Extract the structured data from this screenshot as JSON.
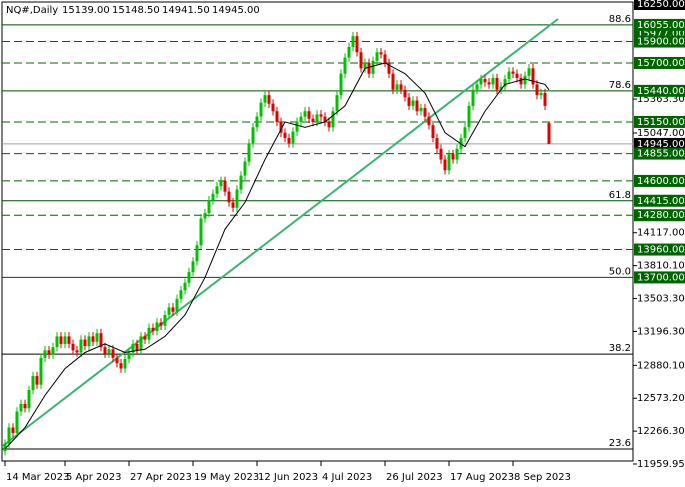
{
  "chart_data": {
    "type": "candlestick",
    "symbol": "NQ#,Daily",
    "header_values": [
      {
        "value": 15139,
        "label": "15139.00"
      },
      {
        "value": 15148.5,
        "label": "15148.50"
      },
      {
        "value": 14941.5,
        "label": "14941.50"
      },
      {
        "value": 14945,
        "label": "14945.00"
      }
    ],
    "up_color": "#00c000",
    "down_color": "#e00000",
    "ylim": [
      11959.95,
      16250
    ],
    "xlim": [
      -0.75,
      157
    ],
    "yticks": [
      {
        "value": 15363.3,
        "label": "15363.30"
      },
      {
        "value": 15047,
        "label": "15047.00"
      },
      {
        "value": 14117,
        "label": "14117.00"
      },
      {
        "value": 13810.1,
        "label": "13810.10"
      },
      {
        "value": 13503.3,
        "label": "13503.30"
      },
      {
        "value": 13196.3,
        "label": "13196.30"
      },
      {
        "value": 12880.1,
        "label": "12880.10"
      },
      {
        "value": 12573.2,
        "label": "12573.20"
      },
      {
        "value": 12266.3,
        "label": "12266.30"
      },
      11959.95
    ],
    "xticks": [
      {
        "value": 0,
        "label": "14 Mar 2023"
      },
      {
        "value": 15,
        "label": "5 Apr 2023"
      },
      {
        "value": 31,
        "label": "27 Apr 2023"
      },
      {
        "value": 47,
        "label": "19 May 2023"
      },
      {
        "value": 63,
        "label": "12 Jun 2023"
      },
      {
        "value": 79,
        "label": "4 Jul 2023"
      },
      {
        "value": 95,
        "label": "26 Jul 2023"
      },
      {
        "value": 111,
        "label": "17 Aug 2023"
      },
      {
        "value": 127,
        "label": "8 Sep 2023"
      }
    ],
    "levels": [
      {
        "value": 16250,
        "label": "16250.00",
        "style": "top"
      },
      {
        "value": 15977,
        "label": "15977.00",
        "style": "none"
      },
      {
        "value": 16055,
        "label": "16055.00",
        "ratio": "88.6",
        "style": "solid"
      },
      {
        "value": 15900,
        "label": "15900.00",
        "style": "dashed"
      },
      {
        "value": 15700,
        "label": "15700.00",
        "style": "dashed"
      },
      {
        "value": 15440,
        "label": "15440.00",
        "ratio": "78.6",
        "style": "solid"
      },
      {
        "value": 15150,
        "label": "15150.00",
        "style": "dashed"
      },
      {
        "value": 14945,
        "label": "14945.00",
        "style": "price"
      },
      {
        "value": 14855,
        "label": "14855.00",
        "style": "dashed"
      },
      {
        "value": 14600,
        "label": "14600.00",
        "style": "dashed"
      },
      {
        "value": 14415,
        "label": "14415.00",
        "ratio": "61.8",
        "style": "solid"
      },
      {
        "value": 14280,
        "label": "14280.00",
        "style": "dashed"
      },
      {
        "value": 13960,
        "label": "13960.00",
        "style": "dashed"
      },
      {
        "value": 13700,
        "label": "13700.00",
        "ratio": "50.0",
        "style": "solid"
      },
      {
        "value": 12985,
        "ratio": "38.2",
        "style": "black"
      },
      {
        "value": 12100,
        "ratio": "23.6",
        "style": "black"
      }
    ],
    "trendline": {
      "color": "#3cb371",
      "x": [
        -0.5,
        138.25
      ],
      "values": [
        12130,
        16110
      ]
    },
    "ma": {
      "color": "#000000",
      "x": [
        0,
        5,
        10,
        15,
        20,
        25,
        30,
        35,
        40,
        45,
        50,
        55,
        60,
        65,
        70,
        75,
        80,
        85,
        90,
        95,
        100,
        105,
        110,
        115,
        120,
        125,
        130,
        135,
        136
      ],
      "values": [
        12100,
        12300,
        12600,
        12850,
        13000,
        13080,
        13000,
        13030,
        13150,
        13350,
        13700,
        14150,
        14400,
        14800,
        15150,
        15100,
        15150,
        15300,
        15650,
        15700,
        15600,
        15420,
        15050,
        14920,
        15250,
        15500,
        15550,
        15500,
        15450
      ]
    },
    "open": [
      12080,
      12150,
      12300,
      12250,
      12450,
      12520,
      12480,
      12650,
      12780,
      12700,
      12950,
      13020,
      12980,
      13050,
      13150,
      13080,
      13150,
      13080,
      13020,
      13000,
      13120,
      13060,
      13150,
      13100,
      13180,
      13050,
      12990,
      13030,
      12950,
      12900,
      12850,
      12940,
      13000,
      13080,
      13020,
      13150,
      13120,
      13230,
      13200,
      13280,
      13250,
      13350,
      13420,
      13380,
      13500,
      13580,
      13650,
      13750,
      13850,
      14000,
      14250,
      14300,
      14420,
      14480,
      14550,
      14600,
      14500,
      14400,
      14350,
      14520,
      14650,
      14780,
      14950,
      15100,
      15200,
      15330,
      15400,
      15320,
      15250,
      15150,
      15050,
      15000,
      14950,
      15060,
      15150,
      15200,
      15250,
      15180,
      15150,
      15220,
      15200,
      15150,
      15100,
      15250,
      15400,
      15600,
      15750,
      15850,
      15950,
      15800,
      15650,
      15700,
      15600,
      15720,
      15800,
      15780,
      15700,
      15600,
      15450,
      15500,
      15450,
      15380,
      15300,
      15350,
      15250,
      15280,
      15200,
      15120,
      15000,
      14900,
      14800,
      14700,
      14850,
      14800,
      14900,
      15000,
      15100,
      15300,
      15450,
      15500,
      15550,
      15520,
      15500,
      15560,
      15450,
      15480,
      15550,
      15620,
      15600,
      15560,
      15500,
      15580,
      15650,
      15500,
      15400,
      15420,
      15139
    ],
    "high": [
      12190,
      12340,
      12340,
      12490,
      12560,
      12560,
      12690,
      12820,
      12820,
      12990,
      13060,
      13060,
      13090,
      13190,
      13190,
      13190,
      13190,
      13120,
      13060,
      13160,
      13160,
      13190,
      13190,
      13220,
      13220,
      13090,
      13070,
      13070,
      12990,
      12940,
      12980,
      13040,
      13120,
      13120,
      13190,
      13190,
      13270,
      13270,
      13320,
      13320,
      13390,
      13460,
      13460,
      13540,
      13620,
      13690,
      13790,
      13890,
      14040,
      14290,
      14340,
      14460,
      14520,
      14590,
      14640,
      14640,
      14540,
      14440,
      14560,
      14690,
      14820,
      14990,
      15140,
      15240,
      15370,
      15440,
      15440,
      15360,
      15290,
      15190,
      15090,
      15040,
      15100,
      15190,
      15240,
      15290,
      15290,
      15220,
      15260,
      15260,
      15240,
      15190,
      15290,
      15440,
      15640,
      15790,
      15890,
      15990,
      15990,
      15840,
      15740,
      15740,
      15760,
      15840,
      15840,
      15820,
      15740,
      15640,
      15540,
      15540,
      15490,
      15420,
      15390,
      15390,
      15320,
      15320,
      15240,
      15160,
      15040,
      14940,
      14840,
      14890,
      14890,
      14940,
      15040,
      15140,
      15340,
      15490,
      15540,
      15590,
      15590,
      15560,
      15600,
      15600,
      15520,
      15590,
      15660,
      15660,
      15640,
      15600,
      15620,
      15690,
      15690,
      15540,
      15460,
      15460,
      15148.5
    ],
    "low": [
      12040,
      12110,
      12210,
      12210,
      12410,
      12440,
      12440,
      12610,
      12660,
      12660,
      12910,
      12940,
      12940,
      13010,
      13040,
      13040,
      13040,
      12980,
      12960,
      12960,
      13020,
      13020,
      13060,
      13060,
      13010,
      12950,
      12950,
      12910,
      12860,
      12810,
      12810,
      12900,
      12960,
      12980,
      12980,
      13080,
      13080,
      13160,
      13160,
      13210,
      13210,
      13310,
      13340,
      13340,
      13460,
      13540,
      13610,
      13710,
      13810,
      13960,
      14210,
      14260,
      14380,
      14440,
      14510,
      14460,
      14360,
      14310,
      14310,
      14480,
      14610,
      14740,
      14910,
      15060,
      15160,
      15290,
      15280,
      15210,
      15110,
      15010,
      14960,
      14910,
      14910,
      15020,
      15110,
      15160,
      15140,
      15110,
      15110,
      15160,
      15110,
      15060,
      15060,
      15210,
      15360,
      15560,
      15710,
      15810,
      15760,
      15610,
      15610,
      15560,
      15560,
      15680,
      15740,
      15660,
      15560,
      15410,
      15410,
      15410,
      15340,
      15260,
      15260,
      15210,
      15210,
      15160,
      15080,
      14960,
      14860,
      14760,
      14660,
      14660,
      14760,
      14760,
      14860,
      14960,
      15060,
      15260,
      15410,
      15460,
      15480,
      15460,
      15460,
      15410,
      15410,
      15440,
      15510,
      15560,
      15520,
      15460,
      15460,
      15540,
      15460,
      15360,
      15360,
      15260,
      14941.5
    ],
    "close": [
      12150,
      12300,
      12250,
      12450,
      12520,
      12480,
      12650,
      12780,
      12700,
      12950,
      13020,
      12980,
      13050,
      13150,
      13080,
      13150,
      13080,
      13020,
      13000,
      13120,
      13060,
      13150,
      13100,
      13180,
      13050,
      12990,
      13030,
      12950,
      12900,
      12850,
      12940,
      13000,
      13080,
      13020,
      13150,
      13120,
      13230,
      13200,
      13280,
      13250,
      13350,
      13420,
      13380,
      13500,
      13580,
      13650,
      13750,
      13850,
      14000,
      14250,
      14300,
      14420,
      14480,
      14550,
      14600,
      14500,
      14400,
      14350,
      14520,
      14650,
      14780,
      14950,
      15100,
      15200,
      15330,
      15400,
      15320,
      15250,
      15150,
      15050,
      15000,
      14950,
      15060,
      15150,
      15200,
      15250,
      15180,
      15150,
      15220,
      15200,
      15150,
      15100,
      15250,
      15400,
      15600,
      15750,
      15850,
      15950,
      15800,
      15650,
      15700,
      15600,
      15720,
      15800,
      15780,
      15700,
      15600,
      15450,
      15500,
      15450,
      15380,
      15300,
      15350,
      15250,
      15280,
      15200,
      15120,
      15000,
      14900,
      14800,
      14700,
      14850,
      14800,
      14900,
      15000,
      15100,
      15300,
      15450,
      15500,
      15550,
      15520,
      15500,
      15560,
      15450,
      15480,
      15550,
      15620,
      15600,
      15560,
      15500,
      15580,
      15650,
      15500,
      15400,
      15420,
      15300,
      14945
    ]
  }
}
